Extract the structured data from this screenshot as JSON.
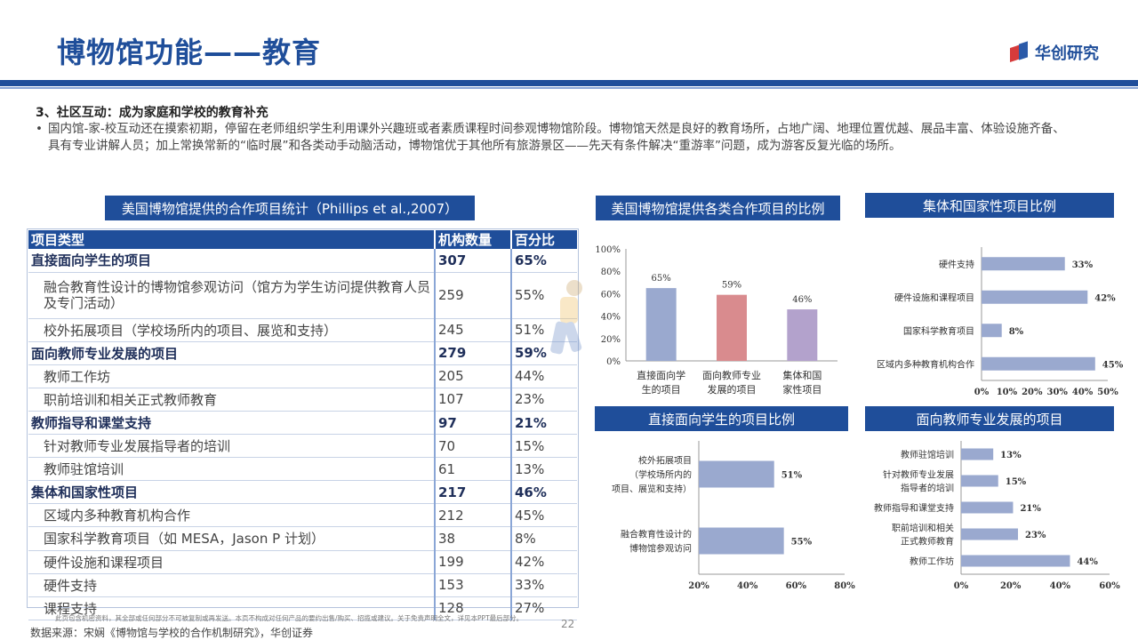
{
  "header": {
    "title": "博物馆功能——教育",
    "brand": "华创研究"
  },
  "section": {
    "heading": "3、社区互动：成为家庭和学校的教育补充",
    "bullet": "国内馆-家-校互动还在摸索初期，停留在老师组织学生利用课外兴趣班或者素质课程时间参观博物馆阶段。博物馆天然是良好的教育场所，占地广阔、地理位置优越、展品丰富、体验设施齐备、具有专业讲解人员；加上常换常新的“临时展”和各类动手动脑活动，博物馆优于其他所有旅游景区——先天有条件解决“重游率”问题，成为游客反复光临的场所。"
  },
  "table": {
    "banner": "美国博物馆提供的合作项目统计（Phillips et al.,2007）",
    "headers": [
      "项目类型",
      "机构数量",
      "百分比"
    ],
    "rows": [
      {
        "name": "直接面向学生的项目",
        "count": "307",
        "pct": "65%",
        "level": "cat"
      },
      {
        "name": "融合教育性设计的博物馆参观访问（馆方为学生访问提供教育人员及专门活动）",
        "count": "259",
        "pct": "55%",
        "level": "sub2"
      },
      {
        "name": "校外拓展项目（学校场所内的项目、展览和支持）",
        "count": "245",
        "pct": "51%",
        "level": "sub"
      },
      {
        "name": "面向教师专业发展的项目",
        "count": "279",
        "pct": "59%",
        "level": "cat"
      },
      {
        "name": "教师工作坊",
        "count": "205",
        "pct": "44%",
        "level": "sub"
      },
      {
        "name": "职前培训和相关正式教师教育",
        "count": "107",
        "pct": "23%",
        "level": "sub"
      },
      {
        "name": "教师指导和课堂支持",
        "count": "97",
        "pct": "21%",
        "level": "cat"
      },
      {
        "name": "针对教师专业发展指导者的培训",
        "count": "70",
        "pct": "15%",
        "level": "sub"
      },
      {
        "name": "教师驻馆培训",
        "count": "61",
        "pct": "13%",
        "level": "sub"
      },
      {
        "name": "集体和国家性项目",
        "count": "217",
        "pct": "46%",
        "level": "cat"
      },
      {
        "name": "区域内多种教育机构合作",
        "count": "212",
        "pct": "45%",
        "level": "sub"
      },
      {
        "name": "国家科学教育项目（如 MESA，Jason P 计划）",
        "count": "38",
        "pct": "8%",
        "level": "sub"
      },
      {
        "name": "硬件设施和课程项目",
        "count": "199",
        "pct": "42%",
        "level": "sub"
      },
      {
        "name": "硬件支持",
        "count": "153",
        "pct": "33%",
        "level": "sub"
      },
      {
        "name": "课程支持",
        "count": "128",
        "pct": "27%",
        "level": "sub"
      }
    ]
  },
  "chart_data": [
    {
      "id": "c1",
      "type": "bar",
      "title": "美国博物馆提供各类合作项目的比例",
      "categories": [
        "直接面向学生的项目",
        "面向教师专业发展的项目",
        "集体和国家性项目"
      ],
      "category_lines": [
        [
          "直接面向学",
          "生的项目"
        ],
        [
          "面向教师专业",
          "发展的项目"
        ],
        [
          "集体和国",
          "家性项目"
        ]
      ],
      "values": [
        65,
        59,
        46
      ],
      "labels": [
        "65%",
        "59%",
        "46%"
      ],
      "ylim": [
        0,
        100
      ],
      "yticks": [
        "0%",
        "20%",
        "40%",
        "60%",
        "80%",
        "100%"
      ],
      "colors": [
        "#9aa9cf",
        "#d98b8e",
        "#b3a2cc"
      ]
    },
    {
      "id": "c2",
      "type": "bar",
      "orientation": "horizontal",
      "title": "集体和国家性项目比例",
      "categories": [
        "硬件支持",
        "硬件设施和课程项目",
        "国家科学教育项目",
        "区域内多种教育机构合作"
      ],
      "values": [
        33,
        42,
        8,
        45
      ],
      "labels": [
        "33%",
        "42%",
        "8%",
        "45%"
      ],
      "xlim": [
        0,
        50
      ],
      "xticks": [
        "0%",
        "10%",
        "20%",
        "30%",
        "40%",
        "50%"
      ],
      "color": "#9aa9cf"
    },
    {
      "id": "c3",
      "type": "bar",
      "orientation": "horizontal",
      "title": "直接面向学生的项目比例",
      "categories": [
        "校外拓展项目（学校场所内的项目、展览和支持）",
        "融合教育性设计的博物馆参观访问"
      ],
      "category_lines": [
        [
          "校外拓展项目",
          "（学校场所内的",
          "项目、展览和支持）"
        ],
        [
          "融合教育性设计的",
          "博物馆参观访问"
        ]
      ],
      "values": [
        51,
        55
      ],
      "labels": [
        "51%",
        "55%"
      ],
      "xlim": [
        20,
        80
      ],
      "xticks": [
        "20%",
        "40%",
        "60%",
        "80%"
      ],
      "color": "#9aa9cf"
    },
    {
      "id": "c4",
      "type": "bar",
      "orientation": "horizontal",
      "title": "面向教师专业发展的项目",
      "categories": [
        "教师驻馆培训",
        "针对教师专业发展指导者的培训",
        "教师指导和课堂支持",
        "职前培训和相关正式教师教育",
        "教师工作坊"
      ],
      "category_lines": [
        [
          "教师驻馆培训"
        ],
        [
          "针对教师专业发展",
          "指导者的培训"
        ],
        [
          "教师指导和课堂支持"
        ],
        [
          "职前培训和相关",
          "正式教师教育"
        ],
        [
          "教师工作坊"
        ]
      ],
      "values": [
        13,
        15,
        21,
        23,
        44
      ],
      "labels": [
        "13%",
        "15%",
        "21%",
        "23%",
        "44%"
      ],
      "xlim": [
        0,
        60
      ],
      "xticks": [
        "0%",
        "20%",
        "40%",
        "60%"
      ],
      "color": "#9aa9cf"
    }
  ],
  "footer": {
    "disclaimer": "此页包含机密资料，其全部或任何部分不可被复制或再发送。本页不构成对任何产品的要约出售/购买、招揽或建议。关于免责声明全文，详见本PPT最后部分。",
    "page": "22",
    "source": "数据来源：宋娴《博物馆与学校的合作机制研究》，华创证券"
  }
}
